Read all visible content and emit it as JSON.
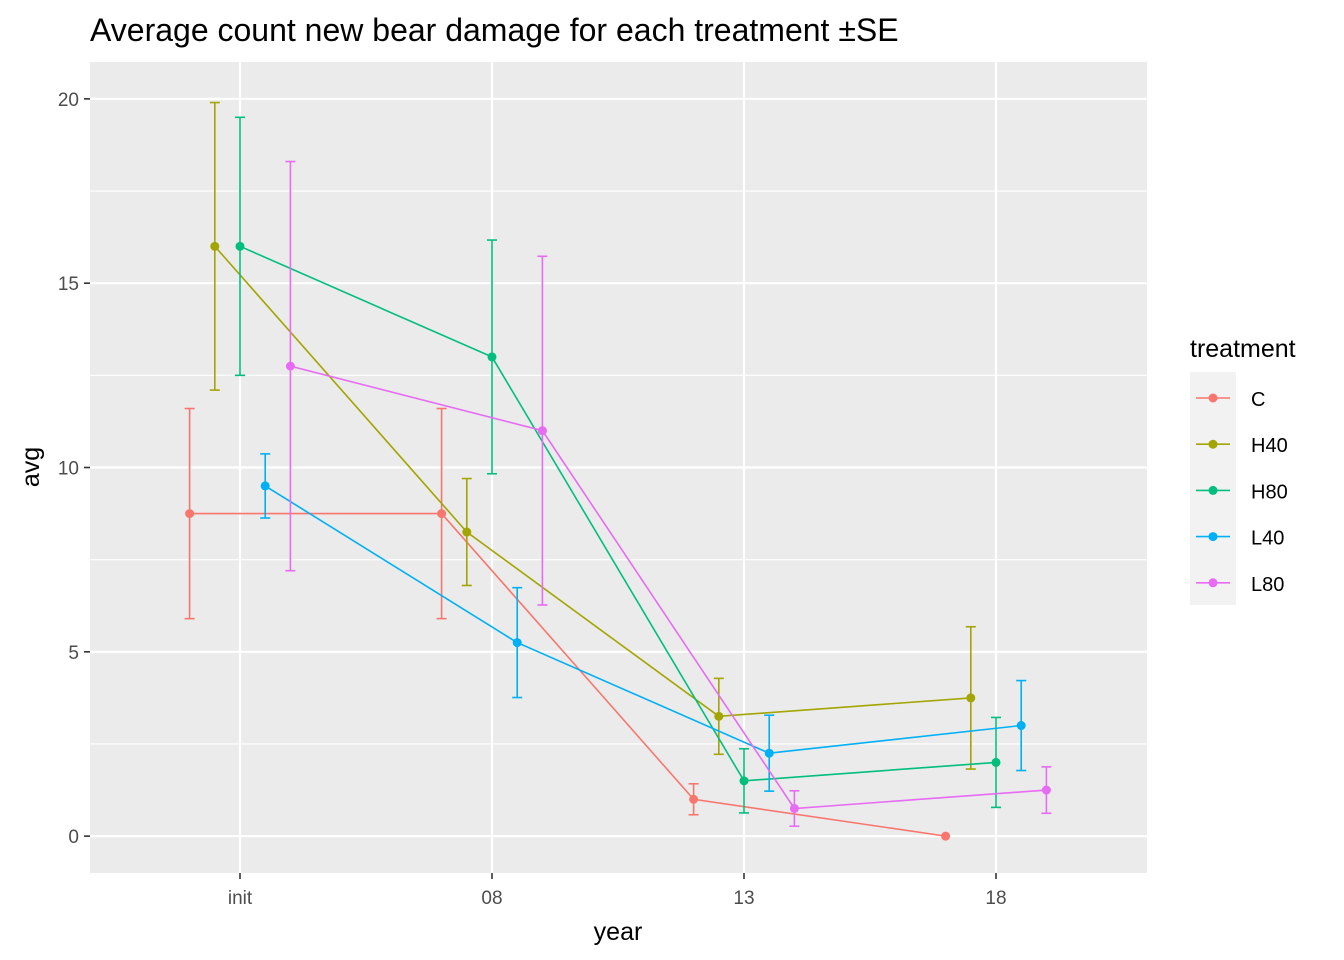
{
  "chart_data": {
    "type": "line",
    "title": "Average count new bear damage for each treatment ±SE",
    "xlabel": "year",
    "ylabel": "avg",
    "categories": [
      "init",
      "08",
      "13",
      "18"
    ],
    "ylim": [
      -1,
      21
    ],
    "yticks": [
      0,
      5,
      10,
      15,
      20
    ],
    "grid": true,
    "error_bars": "±SE",
    "legend": {
      "title": "treatment",
      "position": "right"
    },
    "series": [
      {
        "name": "C",
        "color": "#F8766D",
        "values": [
          8.75,
          8.75,
          1.0,
          0.0
        ],
        "se": [
          2.85,
          2.85,
          0.42,
          0.0
        ]
      },
      {
        "name": "H40",
        "color": "#A3A500",
        "values": [
          16.0,
          8.25,
          3.25,
          3.75
        ],
        "se": [
          3.9,
          1.45,
          1.03,
          1.93
        ]
      },
      {
        "name": "H80",
        "color": "#00BF7D",
        "values": [
          16.0,
          13.0,
          1.5,
          2.0
        ],
        "se": [
          3.5,
          3.17,
          0.87,
          1.22
        ]
      },
      {
        "name": "L40",
        "color": "#00B0F6",
        "values": [
          9.5,
          5.25,
          2.25,
          3.0
        ],
        "se": [
          0.87,
          1.49,
          1.03,
          1.22
        ]
      },
      {
        "name": "L80",
        "color": "#E76BF3",
        "values": [
          12.75,
          11.0,
          0.75,
          1.25
        ],
        "se": [
          5.55,
          4.73,
          0.48,
          0.63
        ]
      }
    ]
  }
}
